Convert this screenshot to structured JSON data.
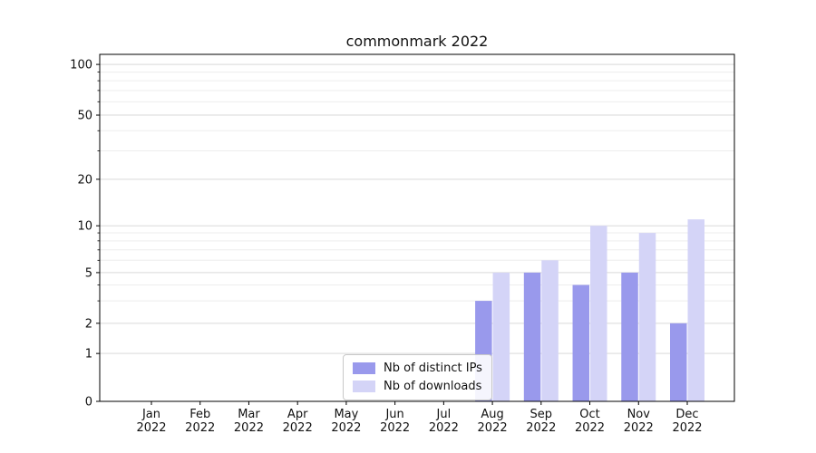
{
  "chart_data": {
    "type": "bar",
    "title": "commonmark 2022",
    "categories": [
      "Jan 2022",
      "Feb 2022",
      "Mar 2022",
      "Apr 2022",
      "May 2022",
      "Jun 2022",
      "Jul 2022",
      "Aug 2022",
      "Sep 2022",
      "Oct 2022",
      "Nov 2022",
      "Dec 2022"
    ],
    "series": [
      {
        "name": "Nb of distinct IPs",
        "color": "#9999ec",
        "values": [
          0,
          0,
          0,
          0,
          0,
          0,
          0,
          3,
          5,
          4,
          5,
          2
        ]
      },
      {
        "name": "Nb of downloads",
        "color": "#d4d4f7",
        "values": [
          0,
          0,
          0,
          0,
          0,
          0,
          0,
          5,
          6,
          10,
          9,
          11
        ]
      }
    ],
    "y_ticks": [
      0,
      1,
      2,
      5,
      10,
      20,
      50,
      100
    ],
    "y_minor_ticks": [
      3,
      4,
      6,
      7,
      8,
      9,
      30,
      40,
      60,
      70,
      80,
      90
    ],
    "ylim": [
      0,
      110
    ],
    "xlabel": "",
    "ylabel": "",
    "grid": true,
    "y_scale": "symlog",
    "legend_position": "lower center"
  }
}
